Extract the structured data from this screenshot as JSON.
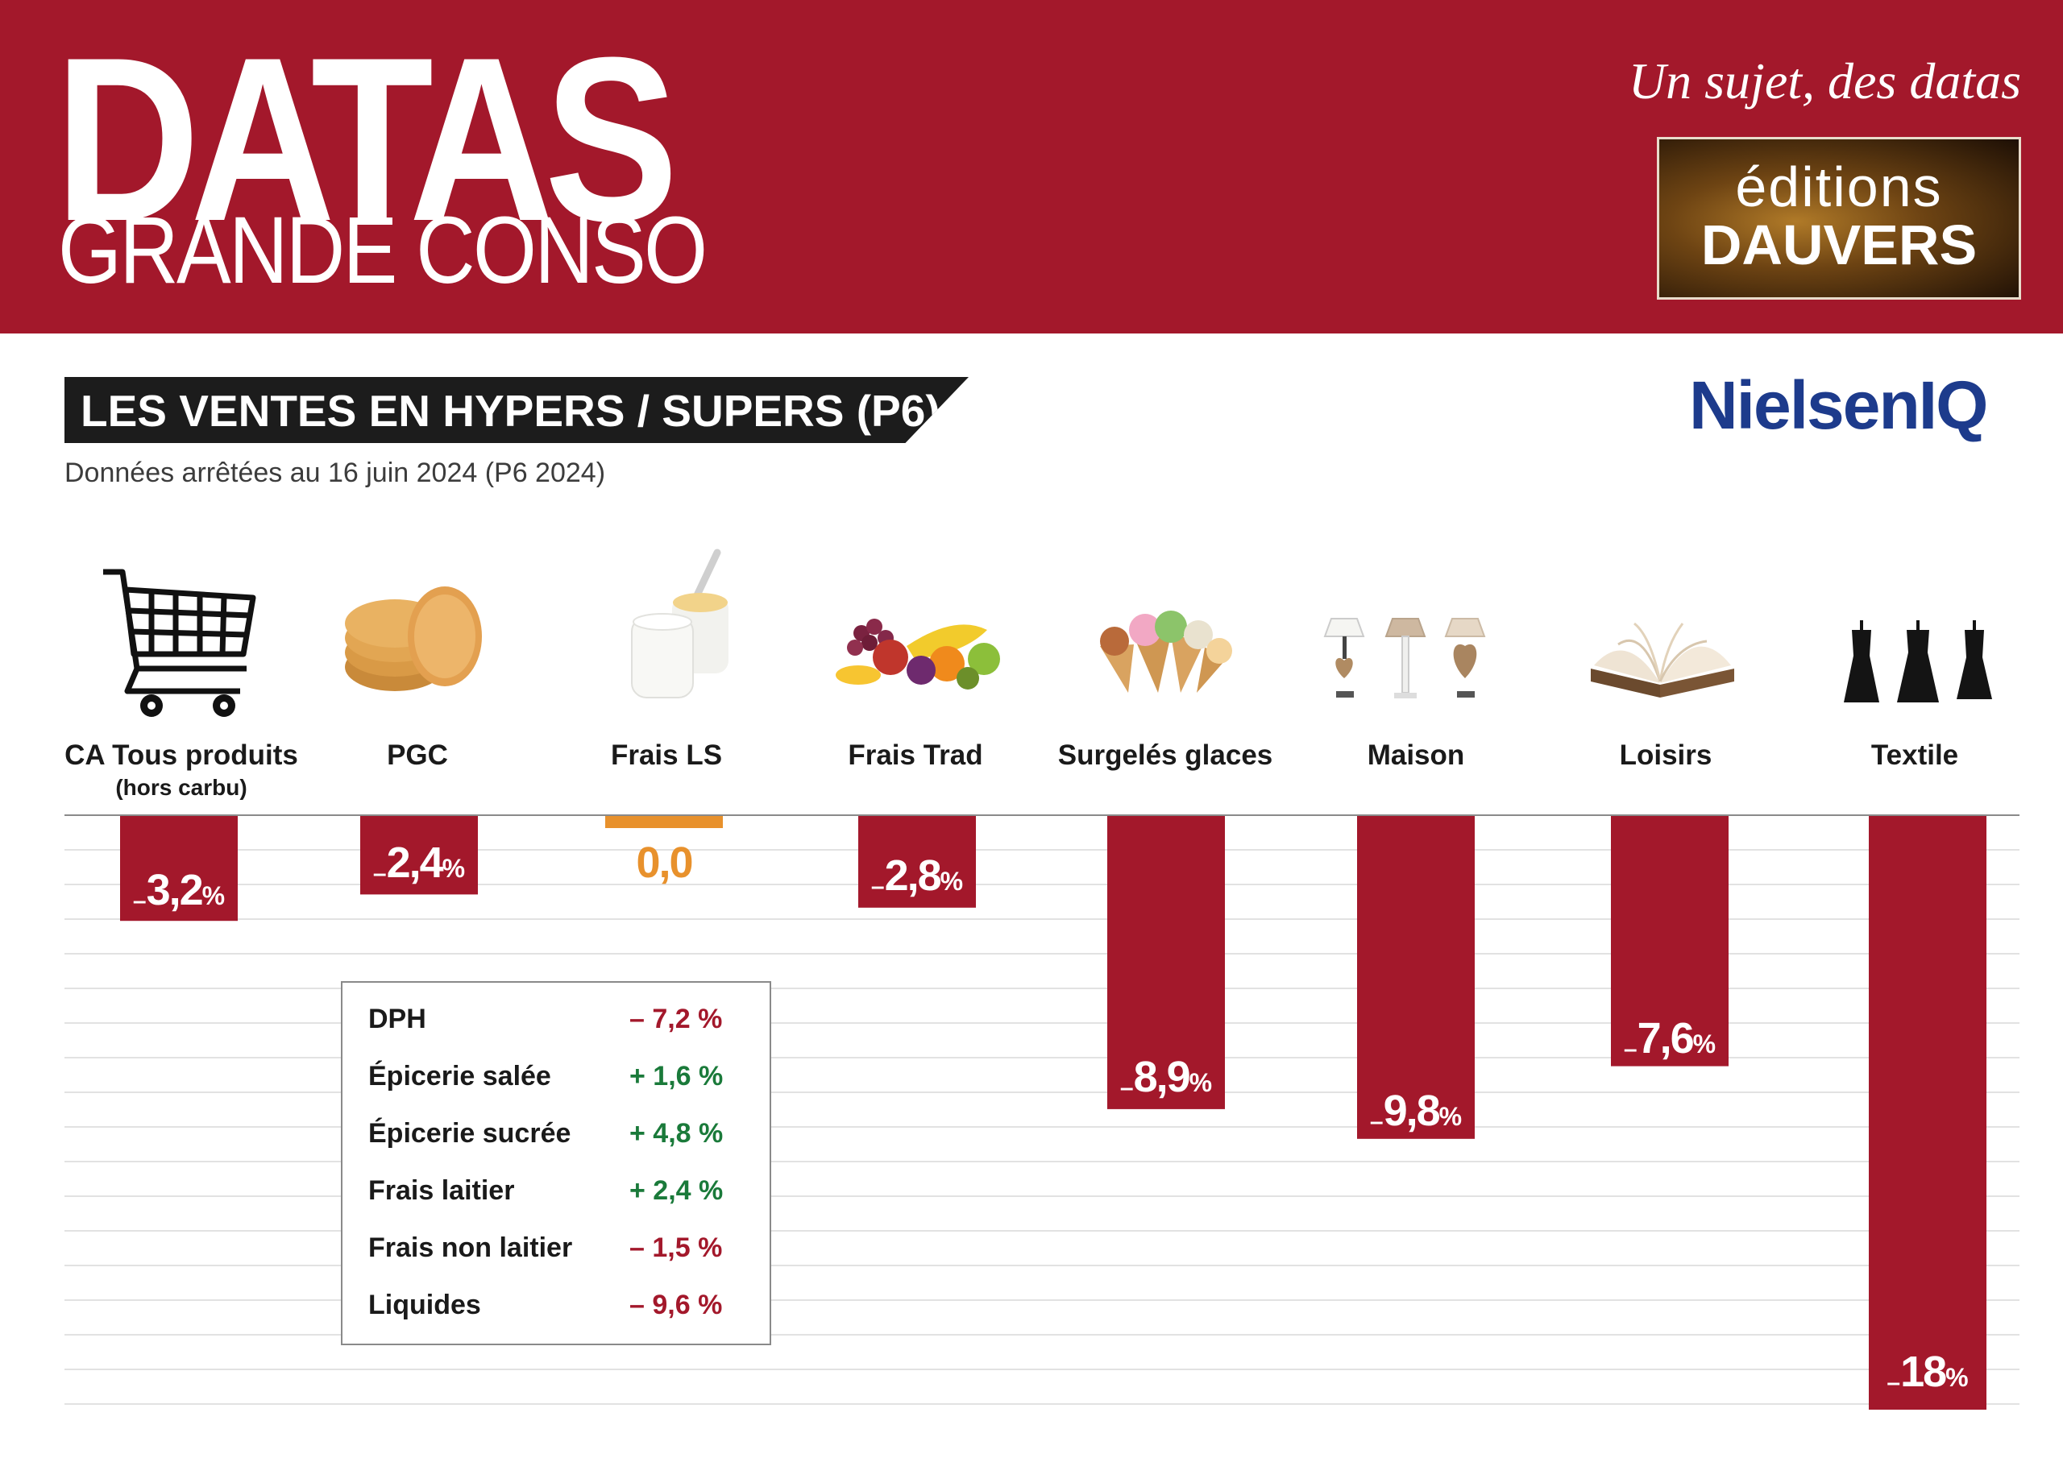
{
  "header": {
    "brand_main": "DATAS",
    "brand_sub": "GRANDE CONSO",
    "tagline": "Un sujet, des datas",
    "publisher_line1": "éditions",
    "publisher_line2": "DAUVERS"
  },
  "section": {
    "title": "LES VENTES EN HYPERS / SUPERS (P6)",
    "source_logo": "NielsenIQ",
    "date_note": "Données arrêtées au 16 juin 2024 (P6 2024)"
  },
  "colors": {
    "brand_red": "#a3182b",
    "bar_red": "#a3182b",
    "zero_orange": "#e8912c",
    "positive_green": "#1a7a3a",
    "negative_red": "#a3182b"
  },
  "chart_data": {
    "type": "bar",
    "orientation": "vertical-downward",
    "categories": [
      "CA Tous produits",
      "PGC",
      "Frais LS",
      "Frais Trad",
      "Surgelés glaces",
      "Maison",
      "Loisirs",
      "Textile"
    ],
    "category_sublabels": [
      "(hors carbu)",
      "",
      "",
      "",
      "",
      "",
      "",
      ""
    ],
    "values": [
      -3.2,
      -2.4,
      0.0,
      -2.8,
      -8.9,
      -9.8,
      -7.6,
      -18
    ],
    "value_labels": [
      {
        "sign": "–",
        "num": "3,2",
        "pct": "%"
      },
      {
        "sign": "–",
        "num": "2,4",
        "pct": "%"
      },
      {
        "sign": "",
        "num": "0,0",
        "pct": ""
      },
      {
        "sign": "–",
        "num": "2,8",
        "pct": "%"
      },
      {
        "sign": "–",
        "num": "8,9",
        "pct": "%"
      },
      {
        "sign": "–",
        "num": "9,8",
        "pct": "%"
      },
      {
        "sign": "–",
        "num": "7,6",
        "pct": "%"
      },
      {
        "sign": "–",
        "num": "18",
        "pct": "%"
      }
    ],
    "icons": [
      "shopping-cart-icon",
      "biscuits-icon",
      "yogurt-icon",
      "fruit-icon",
      "ice-cream-icon",
      "lamps-icon",
      "book-icon",
      "dresses-icon"
    ],
    "ylim": [
      -18,
      0
    ],
    "grid": true,
    "breakdown": {
      "parent": "PGC",
      "items": [
        {
          "label": "DPH",
          "value": "– 7,2 %",
          "sign": "negative"
        },
        {
          "label": "Épicerie salée",
          "value": "+ 1,6 %",
          "sign": "positive"
        },
        {
          "label": "Épicerie sucrée",
          "value": "+ 4,8 %",
          "sign": "positive"
        },
        {
          "label": "Frais laitier",
          "value": "+ 2,4 %",
          "sign": "positive"
        },
        {
          "label": "Frais non laitier",
          "value": "– 1,5 %",
          "sign": "negative"
        },
        {
          "label": "Liquides",
          "value": "– 9,6 %",
          "sign": "negative"
        }
      ]
    }
  }
}
